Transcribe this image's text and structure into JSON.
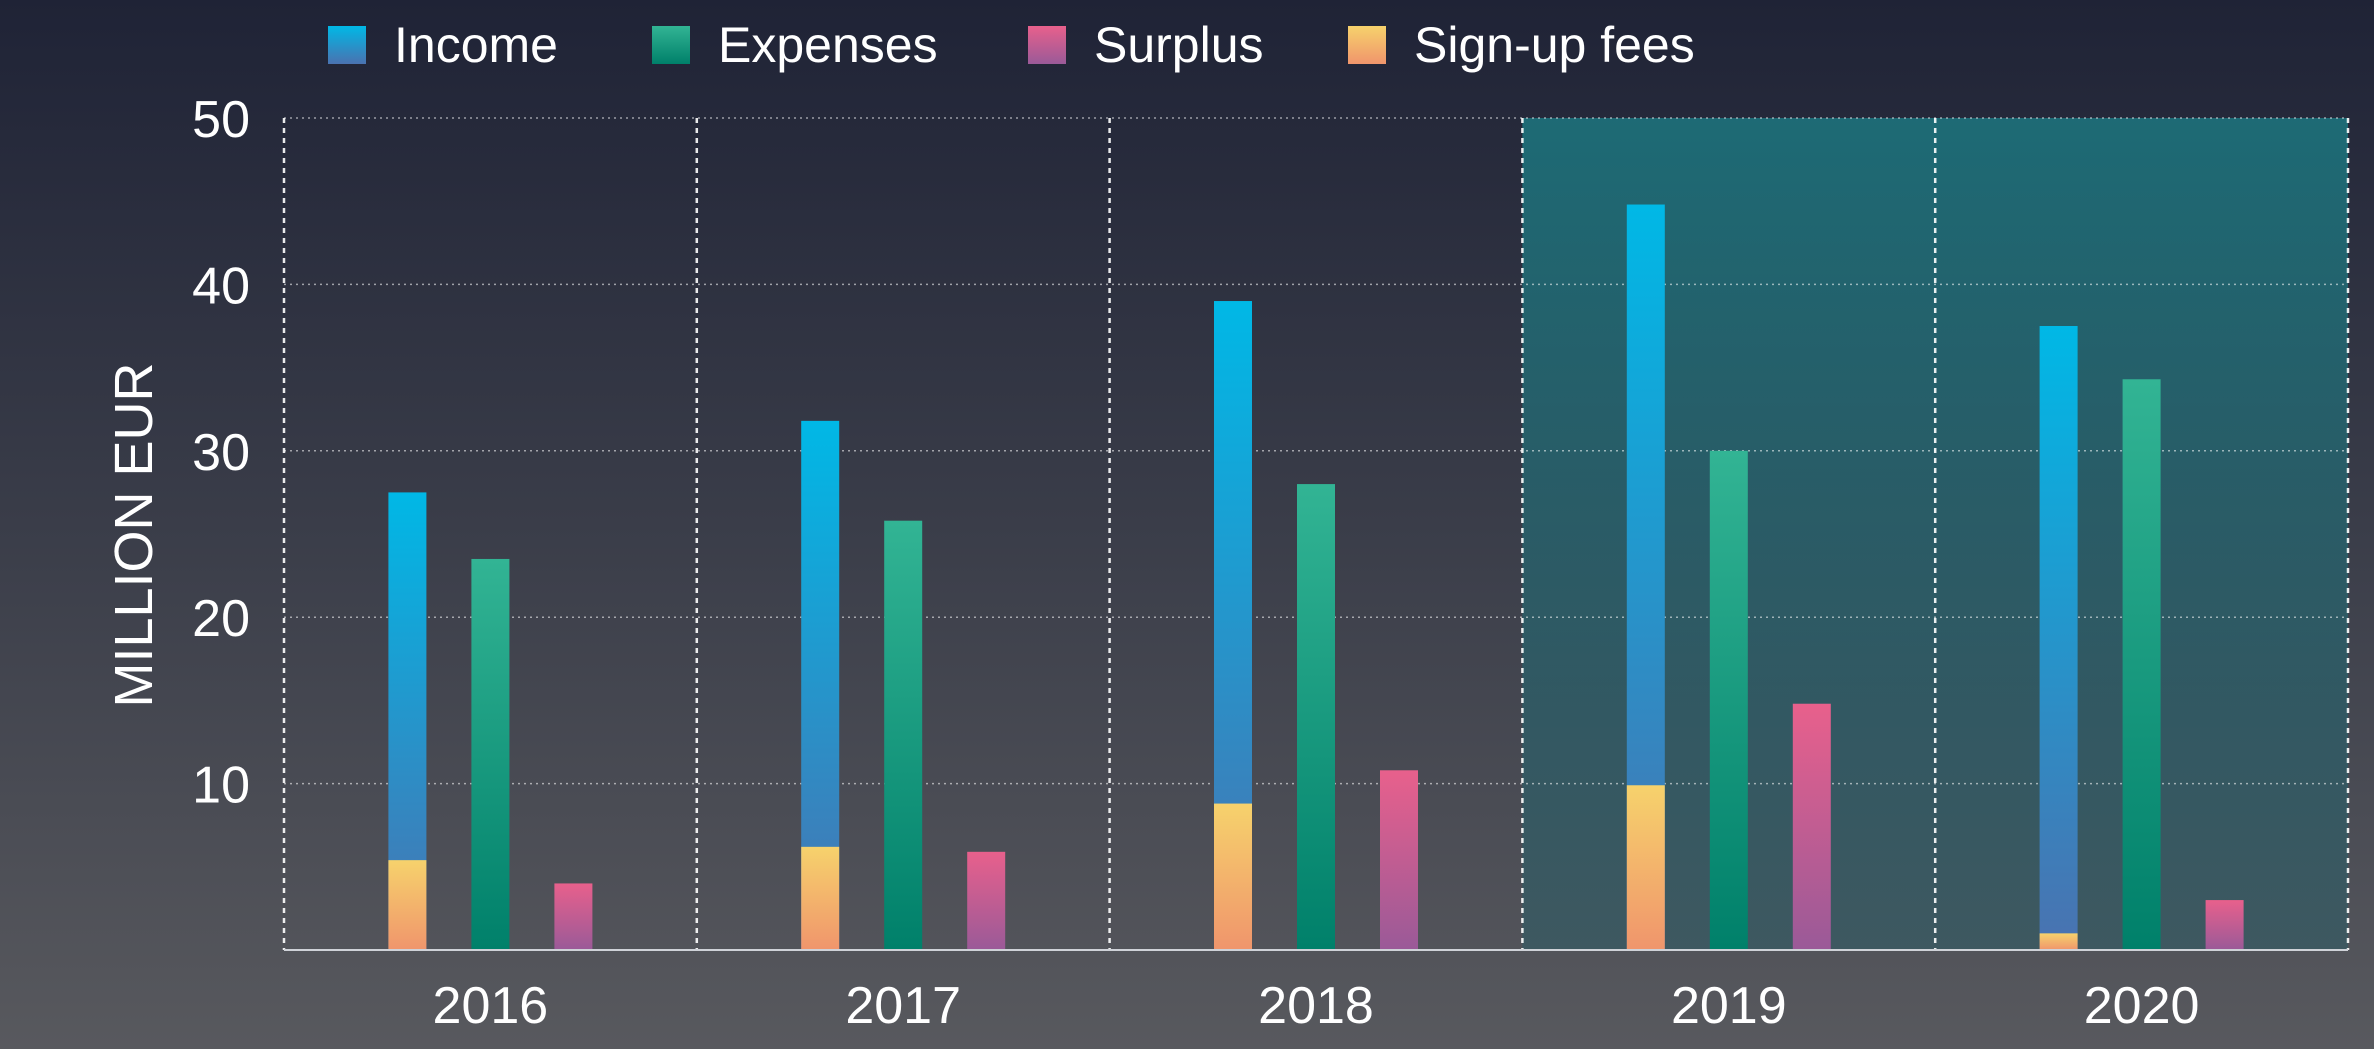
{
  "chart_data": {
    "type": "bar",
    "ylabel": "MILLION EUR",
    "ylim": [
      0,
      50
    ],
    "yticks": [
      10,
      20,
      30,
      40,
      50
    ],
    "categories": [
      "2016",
      "2017",
      "2018",
      "2019",
      "2020"
    ],
    "highlighted_categories": [
      "2019",
      "2020"
    ],
    "grid": "horizontal dotted; vertical dotted category separators",
    "legend": {
      "placement": "top-left",
      "items": [
        {
          "label": "Income",
          "colors": [
            "#00b8e6",
            "#4a72b0"
          ]
        },
        {
          "label": "Expenses",
          "colors": [
            "#32b494",
            "#00806a"
          ]
        },
        {
          "label": "Surplus",
          "colors": [
            "#e8608c",
            "#9a5a98"
          ]
        },
        {
          "label": "Sign-up fees",
          "colors": [
            "#f6d26c",
            "#f0956c"
          ]
        }
      ]
    },
    "stacked_note": "Sign-up fees are part of the Income bar (stacked at its base).",
    "series": [
      {
        "name": "Income",
        "values": [
          27.5,
          31.8,
          39.0,
          44.8,
          37.5
        ]
      },
      {
        "name": "Expenses",
        "values": [
          23.5,
          25.8,
          28.0,
          30.0,
          34.3
        ]
      },
      {
        "name": "Surplus",
        "values": [
          4.0,
          5.9,
          10.8,
          14.8,
          3.0
        ]
      },
      {
        "name": "Sign-up fees",
        "values": [
          5.4,
          6.2,
          8.8,
          9.9,
          1.0
        ]
      }
    ]
  }
}
